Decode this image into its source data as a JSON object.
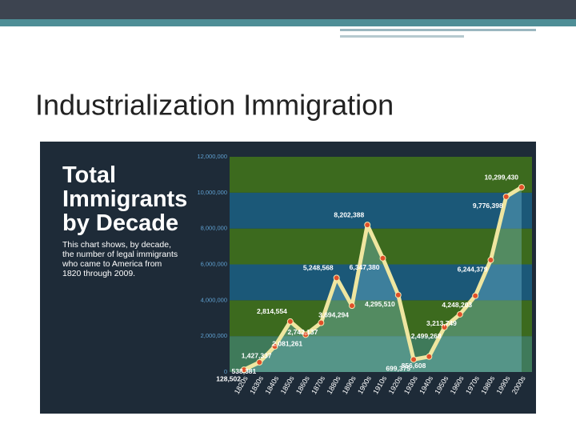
{
  "slide": {
    "title": "Industrialization Immigration"
  },
  "chart_data": {
    "type": "line",
    "title": "Total Immigrants by Decade",
    "subtitle": "This chart shows, by decade, the number of legal immigrants who came to America from 1820 through 2009.",
    "categories": [
      "1820s",
      "1830s",
      "1840s",
      "1850s",
      "1860s",
      "1870s",
      "1880s",
      "1890s",
      "1900s",
      "1910s",
      "1920s",
      "1930s",
      "1940s",
      "1950s",
      "1960s",
      "1970s",
      "1980s",
      "1990s",
      "2000s"
    ],
    "series": [
      {
        "name": "Total Immigrants",
        "color": "#efe6a0",
        "values": [
          128502,
          538381,
          1427337,
          2814554,
          2081261,
          2742137,
          5248568,
          3694294,
          8202388,
          6347380,
          4295510,
          699375,
          856608,
          2499268,
          3213749,
          4248203,
          6244379,
          9776398,
          10299430
        ],
        "value_labels": [
          "128,502",
          "538,381",
          "1,427,337",
          "2,814,554",
          "2,081,261",
          "2,742,137",
          "5,248,568",
          "3,694,294",
          "8,202,388",
          "6,347,380",
          "4,295,510",
          "699,375",
          "856,608",
          "2,499,268",
          "3,213,749",
          "4,248,203",
          "6,244,379",
          "9,776,398",
          "10,299,430"
        ]
      }
    ],
    "ylim": [
      0,
      12000000
    ],
    "yticks": [
      0,
      {
        "value": 2000000,
        "label": "2,000,000"
      },
      {
        "value": 4000000,
        "label": "4,000,000"
      },
      {
        "value": 6000000,
        "label": "6,000,000"
      },
      {
        "value": 8000000,
        "label": "8,000,000"
      },
      {
        "value": 10000000,
        "label": "10,000,000"
      },
      {
        "value": 12000000,
        "label": "12,000,000"
      }
    ],
    "grid": true
  }
}
